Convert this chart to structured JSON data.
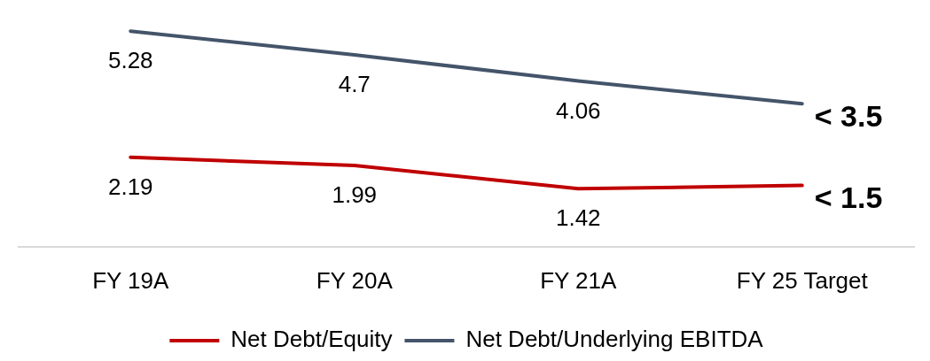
{
  "chart_data": {
    "type": "line",
    "categories": [
      "FY 19A",
      "FY 20A",
      "FY 21A",
      "FY 25 Target"
    ],
    "series": [
      {
        "name": "Net Debt/Equity",
        "color": "#c00000",
        "values": [
          2.19,
          1.99,
          1.42,
          1.5
        ],
        "value_labels": [
          "2.19",
          "1.99",
          "1.42",
          "< 1.5"
        ]
      },
      {
        "name": "Net Debt/Underlying EBITDA",
        "color": "#44546a",
        "values": [
          5.28,
          4.7,
          4.06,
          3.5
        ],
        "value_labels": [
          "5.28",
          "4.7",
          "4.06",
          "< 3.5"
        ]
      }
    ],
    "tick_labels": "x",
    "grid": false,
    "legend": "bottom",
    "marker": "none",
    "line_style": "solid"
  }
}
